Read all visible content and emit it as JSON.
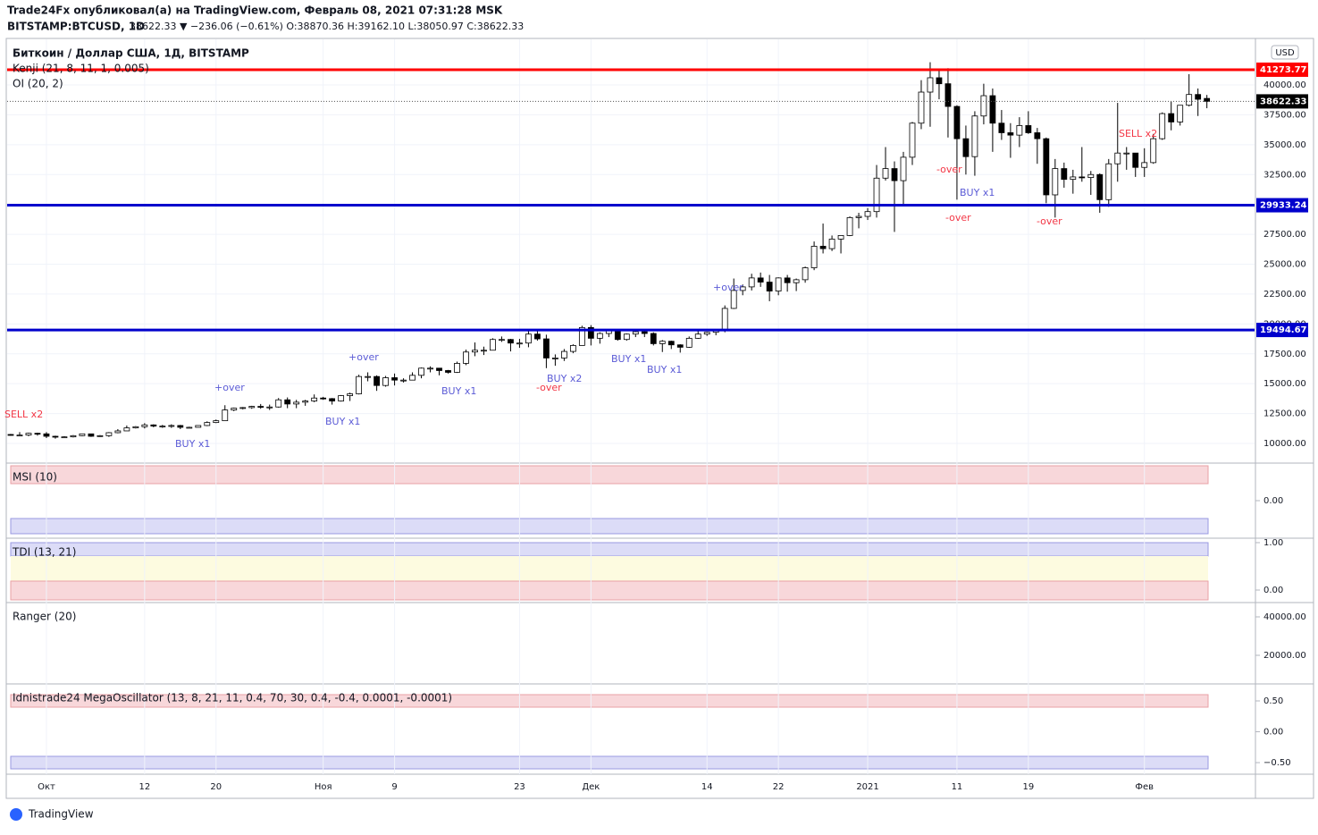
{
  "header": {
    "publisher": "Trade24Fx опубликовал(а) на TradingView.com, Февраль 08, 2021 07:31:28 MSK",
    "symbol": "BITSTAMP:BTCUSD, 1D",
    "quote": "38622.33 ▼ −236.06 (−0.61%) O:38870.36 H:39162.10 L:38050.97 C:38622.33",
    "footer": "TradingView"
  },
  "chart_data": [
    {
      "type": "candlestick",
      "title": "Биткоин / Доллар США, 1Д, BITSTAMP",
      "legend": [
        "Kenji (21, 8, 11, 1, 0.005)",
        "OI (20, 2)"
      ],
      "currency": "USD",
      "ylim": [
        8430,
        43815
      ],
      "yticks": [
        {
          "value": 10000,
          "label": "10000.00"
        },
        {
          "value": 12500,
          "label": "12500.00"
        },
        {
          "value": 15000,
          "label": "15000.00"
        },
        {
          "value": 17500,
          "label": "17500.00"
        },
        {
          "value": 20000,
          "label": "20000.00"
        },
        {
          "value": 22500,
          "label": "22500.00"
        },
        {
          "value": 25000,
          "label": "25000.00"
        },
        {
          "value": 27500,
          "label": "27500.00"
        },
        {
          "value": 30000,
          "label": "30000.00"
        },
        {
          "value": 32500,
          "label": "32500.00"
        },
        {
          "value": 35000,
          "label": "35000.00"
        },
        {
          "value": 37500,
          "label": "37500.00"
        },
        {
          "value": 40000,
          "label": "40000.00"
        }
      ],
      "xticks": [
        {
          "value": 4,
          "label": "Окт"
        },
        {
          "value": 15,
          "label": "12"
        },
        {
          "value": 23,
          "label": "20"
        },
        {
          "value": 35,
          "label": "Ноя"
        },
        {
          "value": 43,
          "label": "9"
        },
        {
          "value": 57,
          "label": "23"
        },
        {
          "value": 65,
          "label": "Дек"
        },
        {
          "value": 78,
          "label": "14"
        },
        {
          "value": 86,
          "label": "22"
        },
        {
          "value": 96,
          "label": "2021"
        },
        {
          "value": 106,
          "label": "11"
        },
        {
          "value": 114,
          "label": "19"
        },
        {
          "value": 127,
          "label": "Фев"
        }
      ],
      "hlines": [
        {
          "value": 41273.77,
          "color": "#ff0000"
        },
        {
          "value": 29933.24,
          "color": "#0000cc"
        },
        {
          "value": 19494.67,
          "color": "#0000cc"
        }
      ],
      "last_price": 38622.33,
      "up_color": "#ffffff",
      "down_color": "#000000",
      "annotations": [
        {
          "text": "SELL x2",
          "color": "#f23645"
        },
        {
          "text": "BUY x1",
          "color": "#5b5bd6"
        },
        {
          "text": "+over",
          "color": "#5b5bd6"
        },
        {
          "text": "BUY x1",
          "color": "#5b5bd6"
        },
        {
          "text": "+over",
          "color": "#5b5bd6"
        },
        {
          "text": "BUY x1",
          "color": "#5b5bd6"
        },
        {
          "text": "BUY x2",
          "color": "#5b5bd6"
        },
        {
          "text": "-over",
          "color": "#f23645"
        },
        {
          "text": "BUY x1",
          "color": "#5b5bd6"
        },
        {
          "text": "BUY x1",
          "color": "#5b5bd6"
        },
        {
          "text": "+over",
          "color": "#5b5bd6"
        },
        {
          "text": "-over",
          "color": "#f23645"
        },
        {
          "text": "BUY x1",
          "color": "#5b5bd6"
        },
        {
          "text": "-over",
          "color": "#f23645"
        },
        {
          "text": "-over",
          "color": "#f23645"
        },
        {
          "text": "SELL x2",
          "color": "#f23645"
        }
      ],
      "ohlc": [
        [
          10750,
          10800,
          10650,
          10700
        ],
        [
          10700,
          10950,
          10650,
          10700
        ],
        [
          10700,
          10900,
          10600,
          10850
        ],
        [
          10850,
          10900,
          10650,
          10800
        ],
        [
          10800,
          10950,
          10450,
          10600
        ],
        [
          10600,
          10650,
          10400,
          10550
        ],
        [
          10550,
          10600,
          10500,
          10550
        ],
        [
          10550,
          10700,
          10500,
          10650
        ],
        [
          10650,
          10800,
          10600,
          10800
        ],
        [
          10800,
          10800,
          10550,
          10600
        ],
        [
          10600,
          10700,
          10550,
          10650
        ],
        [
          10650,
          10950,
          10550,
          10900
        ],
        [
          10900,
          11200,
          10850,
          11050
        ],
        [
          11050,
          11500,
          11050,
          11300
        ],
        [
          11300,
          11450,
          11250,
          11400
        ],
        [
          11400,
          11700,
          11250,
          11550
        ],
        [
          11550,
          11600,
          11350,
          11450
        ],
        [
          11450,
          11550,
          11300,
          11450
        ],
        [
          11450,
          11600,
          11300,
          11500
        ],
        [
          11500,
          11550,
          11200,
          11350
        ],
        [
          11350,
          11400,
          11300,
          11350
        ],
        [
          11350,
          11500,
          11350,
          11500
        ],
        [
          11500,
          11850,
          11450,
          11750
        ],
        [
          11750,
          12000,
          11700,
          11900
        ],
        [
          11900,
          13200,
          11900,
          12800
        ],
        [
          12800,
          13000,
          12700,
          12950
        ],
        [
          12950,
          13050,
          12850,
          13000
        ],
        [
          13000,
          13150,
          12900,
          13100
        ],
        [
          13100,
          13300,
          12900,
          13050
        ],
        [
          13050,
          13250,
          12800,
          13050
        ],
        [
          13050,
          13800,
          13000,
          13650
        ],
        [
          13650,
          13850,
          12950,
          13300
        ],
        [
          13300,
          13650,
          12950,
          13450
        ],
        [
          13450,
          13650,
          13150,
          13550
        ],
        [
          13550,
          14100,
          13450,
          13800
        ],
        [
          13800,
          13900,
          13650,
          13750
        ],
        [
          13750,
          13800,
          13250,
          13550
        ],
        [
          13550,
          14050,
          13500,
          14000
        ],
        [
          14000,
          14250,
          13550,
          14150
        ],
        [
          14150,
          15750,
          14100,
          15600
        ],
        [
          15600,
          15950,
          15200,
          15600
        ],
        [
          15600,
          15700,
          14400,
          14850
        ],
        [
          14850,
          15650,
          14750,
          15500
        ],
        [
          15500,
          15850,
          14850,
          15300
        ],
        [
          15300,
          15450,
          15100,
          15300
        ],
        [
          15300,
          15950,
          15300,
          15700
        ],
        [
          15700,
          16350,
          15450,
          16300
        ],
        [
          16300,
          16450,
          15950,
          16300
        ],
        [
          16300,
          16300,
          15700,
          16100
        ],
        [
          16100,
          16150,
          15850,
          15950
        ],
        [
          15950,
          16850,
          15900,
          16700
        ],
        [
          16700,
          17850,
          16550,
          17650
        ],
        [
          17650,
          18450,
          17300,
          17800
        ],
        [
          17800,
          18100,
          17400,
          17800
        ],
        [
          17800,
          18800,
          17800,
          18700
        ],
        [
          18700,
          18950,
          18500,
          18700
        ],
        [
          18700,
          18750,
          17700,
          18400
        ],
        [
          18400,
          18750,
          18000,
          18400
        ],
        [
          18400,
          19400,
          18050,
          19150
        ],
        [
          19150,
          19450,
          18600,
          18750
        ],
        [
          18750,
          19100,
          16300,
          17150
        ],
        [
          17150,
          17450,
          16500,
          17150
        ],
        [
          17150,
          17900,
          16900,
          17700
        ],
        [
          17700,
          18300,
          17550,
          18200
        ],
        [
          18200,
          19850,
          18200,
          19700
        ],
        [
          19700,
          19900,
          18200,
          18800
        ],
        [
          18800,
          19300,
          18350,
          19200
        ],
        [
          19200,
          19550,
          18900,
          19450
        ],
        [
          19450,
          19500,
          18600,
          18700
        ],
        [
          18700,
          19200,
          18600,
          19150
        ],
        [
          19150,
          19400,
          18900,
          19350
        ],
        [
          19350,
          19400,
          18900,
          19200
        ],
        [
          19200,
          19300,
          18200,
          18350
        ],
        [
          18350,
          18650,
          17650,
          18550
        ],
        [
          18550,
          18600,
          17900,
          18250
        ],
        [
          18250,
          18300,
          17600,
          18050
        ],
        [
          18050,
          18950,
          18000,
          18800
        ],
        [
          18800,
          19400,
          18750,
          19150
        ],
        [
          19150,
          19350,
          19000,
          19300
        ],
        [
          19300,
          19550,
          19050,
          19450
        ],
        [
          19450,
          21550,
          19300,
          21300
        ],
        [
          21300,
          23800,
          21250,
          22800
        ],
        [
          22800,
          23300,
          22400,
          23100
        ],
        [
          23100,
          24200,
          22800,
          23850
        ],
        [
          23850,
          24300,
          23100,
          23500
        ],
        [
          23500,
          24100,
          21900,
          22750
        ],
        [
          22750,
          23900,
          22400,
          23850
        ],
        [
          23850,
          24100,
          22700,
          23450
        ],
        [
          23450,
          23800,
          22750,
          23700
        ],
        [
          23700,
          24800,
          23450,
          24700
        ],
        [
          24700,
          26900,
          24500,
          26500
        ],
        [
          26500,
          28400,
          25900,
          26300
        ],
        [
          26300,
          27400,
          26100,
          27100
        ],
        [
          27100,
          27400,
          25900,
          27400
        ],
        [
          27400,
          29000,
          27350,
          28900
        ],
        [
          28900,
          29300,
          28000,
          29000
        ],
        [
          29000,
          29700,
          28700,
          29400
        ],
        [
          29400,
          33300,
          28900,
          32200
        ],
        [
          32200,
          34800,
          32000,
          33000
        ],
        [
          33000,
          33600,
          27700,
          31990
        ],
        [
          31990,
          34400,
          29900,
          33950
        ],
        [
          33950,
          36900,
          33300,
          36800
        ],
        [
          36800,
          40400,
          36300,
          39400
        ],
        [
          39400,
          41900,
          36500,
          40600
        ],
        [
          40600,
          41300,
          38800,
          40100
        ],
        [
          40100,
          41400,
          35600,
          38200
        ],
        [
          38200,
          38300,
          30400,
          35500
        ],
        [
          35500,
          36600,
          32500,
          34000
        ],
        [
          34000,
          37800,
          32400,
          37400
        ],
        [
          37400,
          40100,
          36700,
          39100
        ],
        [
          39100,
          39700,
          34400,
          36800
        ],
        [
          36800,
          37900,
          35400,
          36000
        ],
        [
          36000,
          36800,
          33900,
          35800
        ],
        [
          35800,
          37300,
          34800,
          36600
        ],
        [
          36600,
          37800,
          35900,
          36000
        ],
        [
          36000,
          36400,
          33400,
          35500
        ],
        [
          35500,
          35600,
          30100,
          30800
        ],
        [
          30800,
          33800,
          28900,
          33000
        ],
        [
          33000,
          33500,
          31400,
          32100
        ],
        [
          32100,
          32900,
          30900,
          32300
        ],
        [
          32300,
          34800,
          31900,
          32250
        ],
        [
          32250,
          32800,
          30800,
          32500
        ],
        [
          32500,
          32600,
          29300,
          30400
        ],
        [
          30400,
          33800,
          29800,
          33400
        ],
        [
          33400,
          38500,
          31900,
          34300
        ],
        [
          34300,
          34800,
          32900,
          34300
        ],
        [
          34300,
          34300,
          32300,
          33100
        ],
        [
          33100,
          34700,
          32300,
          33500
        ],
        [
          33500,
          35900,
          33400,
          35500
        ],
        [
          35500,
          37700,
          35400,
          37600
        ],
        [
          37600,
          38600,
          36200,
          36900
        ],
        [
          36900,
          38300,
          36600,
          38300
        ],
        [
          38300,
          40900,
          38200,
          39200
        ],
        [
          39200,
          39700,
          37400,
          38800
        ],
        [
          38870.36,
          39162.1,
          38050.97,
          38622.33
        ]
      ]
    },
    {
      "type": "indicator",
      "title": "MSI (10)",
      "ylim": [
        -0.5,
        0.5
      ],
      "yticks": [
        {
          "value": 0,
          "label": "0.00"
        }
      ]
    },
    {
      "type": "indicator",
      "title": "TDI (13, 21)",
      "ylim": [
        -0.245,
        1.075
      ],
      "yticks": [
        {
          "value": 1,
          "label": "1.00"
        },
        {
          "value": 0,
          "label": "0.00"
        }
      ]
    },
    {
      "type": "indicator",
      "title": "Ranger (20)",
      "ylim": [
        5581,
        46977
      ],
      "yticks": [
        {
          "value": 40000,
          "label": "40000.00"
        },
        {
          "value": 20000,
          "label": "20000.00"
        }
      ]
    },
    {
      "type": "indicator",
      "title": "Idnistrade24 MegaOscillator (13, 8, 21, 11, 0.4, 70, 30, 0.4, -0.4, 0.0001, -0.0001)",
      "ylim": [
        -0.688,
        0.761
      ],
      "yticks": [
        {
          "value": 0.5,
          "label": "0.50"
        },
        {
          "value": 0,
          "label": "0.00"
        },
        {
          "value": -0.5,
          "label": "−0.50"
        }
      ]
    }
  ]
}
